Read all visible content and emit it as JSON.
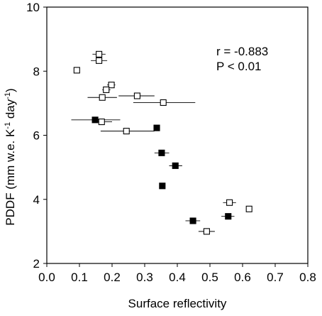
{
  "chart_data": {
    "type": "scatter",
    "title": "",
    "xlabel": "Surface reflectivity",
    "ylabel_main": "PDDF (mm w.e. K",
    "ylabel_sup1": "-1",
    "ylabel_mid": " day",
    "ylabel_sup2": "-1",
    "ylabel_end": ")",
    "xlim": [
      0.0,
      0.8
    ],
    "ylim": [
      2,
      10
    ],
    "xticks": [
      "0.0",
      "0.1",
      "0.2",
      "0.3",
      "0.4",
      "0.5",
      "0.6",
      "0.7",
      "0.8"
    ],
    "yticks": [
      "2",
      "4",
      "6",
      "8",
      "10"
    ],
    "annotation_r": "r = -0.883",
    "annotation_p": "P < 0.01",
    "series": [
      {
        "marker": "open-square",
        "points": [
          {
            "x": 0.16,
            "y": 8.53,
            "xerr": [
              0.14,
              0.18
            ]
          },
          {
            "x": 0.16,
            "y": 8.33,
            "xerr": [
              0.135,
              0.185
            ]
          },
          {
            "x": 0.092,
            "y": 8.03,
            "xerr": null
          },
          {
            "x": 0.198,
            "y": 7.57,
            "xerr": [
              0.185,
              0.21
            ]
          },
          {
            "x": 0.182,
            "y": 7.42,
            "xerr": [
              0.17,
              0.195
            ]
          },
          {
            "x": 0.277,
            "y": 7.23,
            "xerr": [
              0.22,
              0.33
            ]
          },
          {
            "x": 0.17,
            "y": 7.18,
            "xerr": [
              0.125,
              0.215
            ]
          },
          {
            "x": 0.357,
            "y": 7.02,
            "xerr": [
              0.265,
              0.455
            ]
          },
          {
            "x": 0.168,
            "y": 6.42,
            "xerr": [
              0.14,
              0.2
            ]
          },
          {
            "x": 0.244,
            "y": 6.13,
            "xerr": [
              0.165,
              0.33
            ]
          },
          {
            "x": 0.56,
            "y": 3.9,
            "xerr": [
              0.54,
              0.58
            ]
          },
          {
            "x": 0.62,
            "y": 3.7,
            "xerr": null
          },
          {
            "x": 0.49,
            "y": 3.0,
            "xerr": [
              0.465,
              0.515
            ]
          }
        ]
      },
      {
        "marker": "filled-square",
        "points": [
          {
            "x": 0.148,
            "y": 6.48,
            "xerr": [
              0.075,
              0.225
            ]
          },
          {
            "x": 0.337,
            "y": 6.23,
            "xerr": null
          },
          {
            "x": 0.352,
            "y": 5.45,
            "xerr": [
              0.33,
              0.375
            ]
          },
          {
            "x": 0.394,
            "y": 5.05,
            "xerr": [
              0.375,
              0.415
            ]
          },
          {
            "x": 0.354,
            "y": 4.42,
            "xerr": null
          },
          {
            "x": 0.448,
            "y": 3.33,
            "xerr": [
              0.425,
              0.47
            ]
          },
          {
            "x": 0.556,
            "y": 3.47,
            "xerr": [
              0.535,
              0.575
            ]
          }
        ]
      }
    ]
  }
}
